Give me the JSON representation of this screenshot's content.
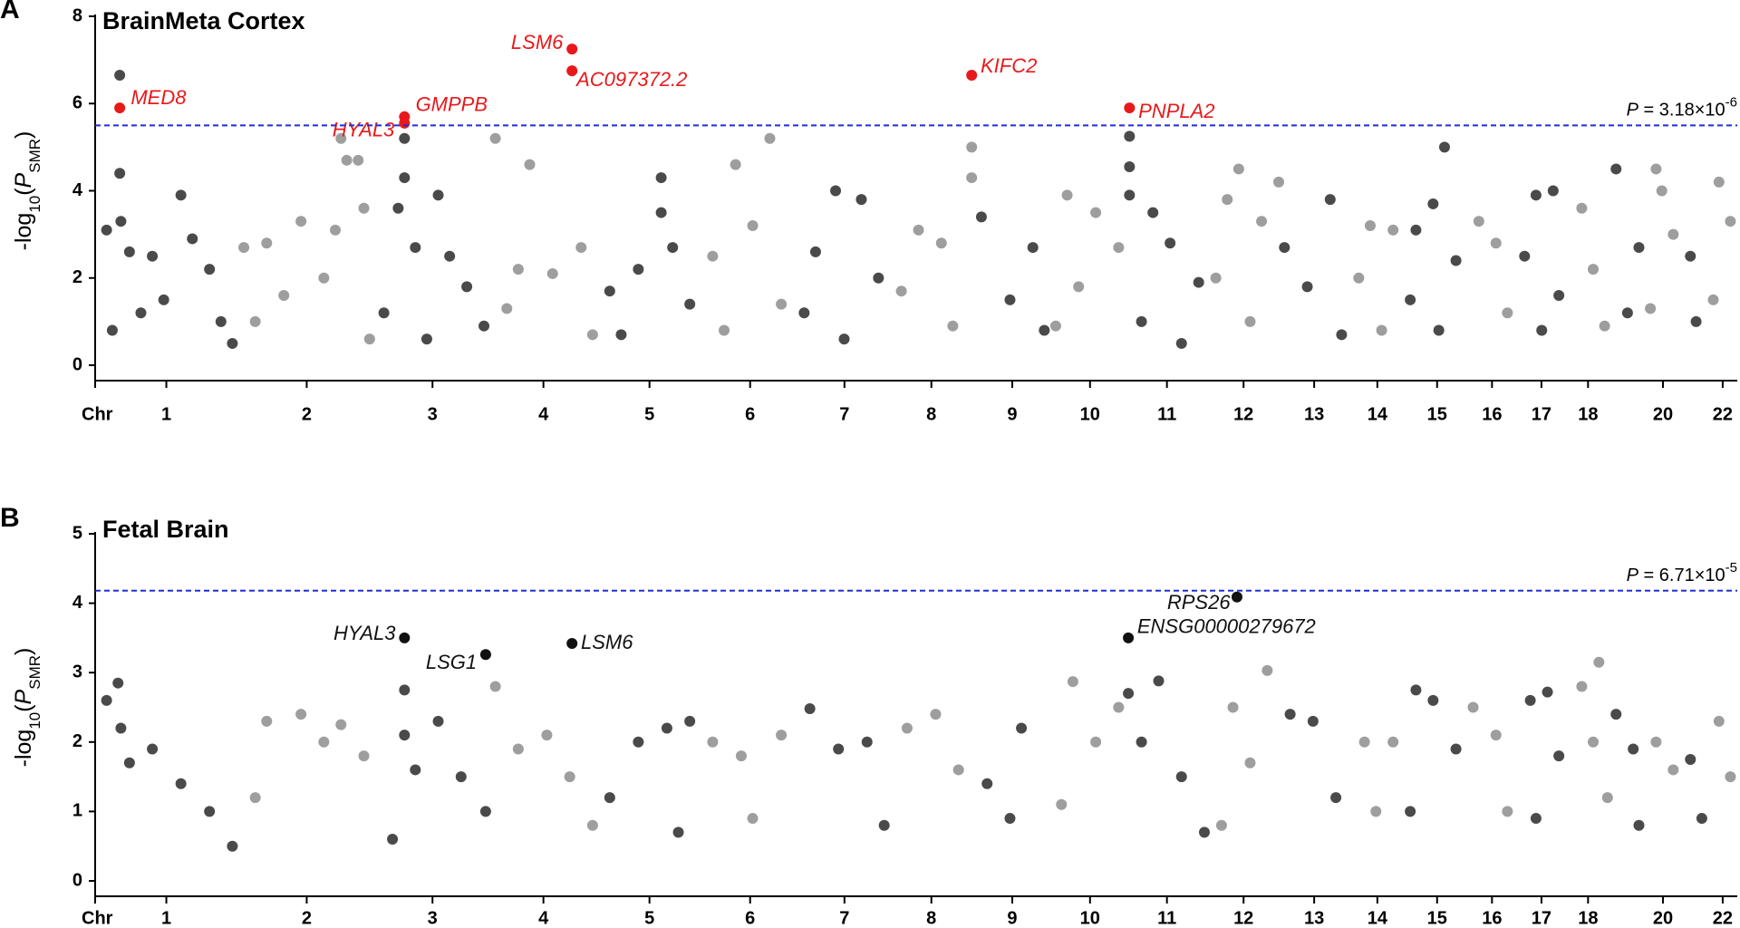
{
  "chart_data": [
    {
      "type": "scatter",
      "panel_label": "A",
      "title": "BrainMeta Cortex",
      "y_label": [
        "-log",
        "10",
        "(",
        "P",
        "SMR",
        ")"
      ],
      "xlim": [
        0,
        2872
      ],
      "ylim": [
        0,
        8
      ],
      "yticks": [
        0,
        2,
        4,
        6,
        8
      ],
      "xticks": [
        {
          "value": 0,
          "label": "Chr"
        },
        {
          "value": 124.5,
          "label": "1"
        },
        {
          "value": 370,
          "label": "2"
        },
        {
          "value": 590,
          "label": "3"
        },
        {
          "value": 784,
          "label": "4"
        },
        {
          "value": 969.5,
          "label": "5"
        },
        {
          "value": 1145.5,
          "label": "6"
        },
        {
          "value": 1310.5,
          "label": "7"
        },
        {
          "value": 1462.5,
          "label": "8"
        },
        {
          "value": 1604,
          "label": "9"
        },
        {
          "value": 1740,
          "label": "10"
        },
        {
          "value": 1874.5,
          "label": "11"
        },
        {
          "value": 2008.5,
          "label": "12"
        },
        {
          "value": 2132,
          "label": "13"
        },
        {
          "value": 2242.5,
          "label": "14"
        },
        {
          "value": 2347,
          "label": "15"
        },
        {
          "value": 2443,
          "label": "16"
        },
        {
          "value": 2529.5,
          "label": "17"
        },
        {
          "value": 2611,
          "label": "18"
        },
        {
          "value": 2742,
          "label": "20"
        },
        {
          "value": 2846.5,
          "label": "22"
        }
      ],
      "threshold": {
        "value": 5.5,
        "color": "#1f2fd6",
        "label": [
          "P",
          " = 3.18×10",
          "-6"
        ]
      },
      "series": [
        {
          "color": "#4a4a4a",
          "x": [
            43,
            43,
            20,
            45,
            60,
            100,
            150,
            170,
            200,
            120,
            80,
            30,
            220,
            240,
            541,
            541,
            530,
            560,
            600,
            620,
            650,
            505,
            680,
            580,
            990,
            990,
            1010,
            950,
            900,
            1040,
            920,
            1295,
            1340,
            1260,
            1370,
            1240,
            1310,
            1550,
            1640,
            1600,
            1660,
            1809,
            1809,
            1809,
            1850,
            1880,
            1930,
            1830,
            1900,
            2080,
            2160,
            2120,
            2180,
            2360,
            2340,
            2310,
            2380,
            2300,
            2350,
            2520,
            2550,
            2500,
            2560,
            2530,
            2660,
            2700,
            2680,
            2790,
            2800
          ],
          "values": [
            6.65,
            4.4,
            3.1,
            3.3,
            2.6,
            2.5,
            3.9,
            2.9,
            2.2,
            1.5,
            1.2,
            0.8,
            1.0,
            0.5,
            5.2,
            4.3,
            3.6,
            2.7,
            3.9,
            2.5,
            1.8,
            1.2,
            0.9,
            0.6,
            4.3,
            3.5,
            2.7,
            2.2,
            1.7,
            1.4,
            0.7,
            4.0,
            3.8,
            2.6,
            2.0,
            1.2,
            0.6,
            3.4,
            2.7,
            1.5,
            0.8,
            5.25,
            4.55,
            3.9,
            3.5,
            2.8,
            1.9,
            1.0,
            0.5,
            2.7,
            3.8,
            1.8,
            0.7,
            5.0,
            3.7,
            3.1,
            2.4,
            1.5,
            0.8,
            3.9,
            4.0,
            2.5,
            1.6,
            0.8,
            4.5,
            2.7,
            1.2,
            2.5,
            1.0
          ]
        },
        {
          "color": "#9e9e9e",
          "x": [
            260,
            300,
            360,
            420,
            430,
            440,
            460,
            470,
            400,
            330,
            280,
            480,
            700,
            760,
            740,
            800,
            850,
            720,
            870,
            1120,
            1180,
            1150,
            1080,
            1200,
            1100,
            1440,
            1480,
            1533,
            1533,
            1410,
            1500,
            1700,
            1750,
            1790,
            1720,
            1680,
            1980,
            2000,
            2040,
            2070,
            1960,
            2020,
            2230,
            2270,
            2210,
            2250,
            2420,
            2450,
            2470,
            2600,
            2620,
            2640,
            2730,
            2740,
            2760,
            2720,
            2840,
            2860,
            2830
          ],
          "values": [
            2.7,
            2.8,
            3.3,
            3.1,
            5.2,
            4.7,
            4.7,
            3.6,
            2.0,
            1.6,
            1.0,
            0.6,
            5.2,
            4.6,
            2.2,
            2.1,
            2.7,
            1.3,
            0.7,
            4.6,
            5.2,
            3.2,
            2.5,
            1.4,
            0.8,
            3.1,
            2.8,
            5.0,
            4.3,
            1.7,
            0.9,
            3.9,
            3.5,
            2.7,
            1.8,
            0.9,
            3.8,
            4.5,
            3.3,
            4.2,
            2.0,
            1.0,
            3.2,
            3.1,
            2.0,
            0.8,
            3.3,
            2.8,
            1.2,
            3.6,
            2.2,
            0.9,
            4.5,
            4.0,
            3.0,
            1.3,
            4.2,
            3.3,
            1.5
          ]
        },
        {
          "color": "#e8191a",
          "labels": [
            "MED8",
            "GMPPB",
            "HYAL3",
            "LSM6",
            "AC097372.2",
            "KIFC2",
            "PNPLA2"
          ],
          "x": [
            43,
            541,
            541,
            834,
            834,
            1533,
            1809
          ],
          "values": [
            5.9,
            5.7,
            5.55,
            7.25,
            6.75,
            6.65,
            5.9
          ]
        }
      ]
    },
    {
      "type": "scatter",
      "panel_label": "B",
      "title": "Fetal Brain",
      "y_label": [
        "-log",
        "10",
        "(",
        "P",
        "SMR",
        ")"
      ],
      "xlim": [
        0,
        2872
      ],
      "ylim": [
        0,
        5
      ],
      "yticks": [
        0,
        1,
        2,
        3,
        4,
        5
      ],
      "xticks": [
        {
          "value": 0,
          "label": "Chr"
        },
        {
          "value": 124.5,
          "label": "1"
        },
        {
          "value": 370,
          "label": "2"
        },
        {
          "value": 590,
          "label": "3"
        },
        {
          "value": 784,
          "label": "4"
        },
        {
          "value": 969.5,
          "label": "5"
        },
        {
          "value": 1145.5,
          "label": "6"
        },
        {
          "value": 1310.5,
          "label": "7"
        },
        {
          "value": 1462.5,
          "label": "8"
        },
        {
          "value": 1604,
          "label": "9"
        },
        {
          "value": 1740,
          "label": "10"
        },
        {
          "value": 1874.5,
          "label": "11"
        },
        {
          "value": 2008.5,
          "label": "12"
        },
        {
          "value": 2132,
          "label": "13"
        },
        {
          "value": 2242.5,
          "label": "14"
        },
        {
          "value": 2347,
          "label": "15"
        },
        {
          "value": 2443,
          "label": "16"
        },
        {
          "value": 2529.5,
          "label": "17"
        },
        {
          "value": 2611,
          "label": "18"
        },
        {
          "value": 2742,
          "label": "20"
        },
        {
          "value": 2846.5,
          "label": "22"
        }
      ],
      "threshold": {
        "value": 4.18,
        "color": "#1f2fd6",
        "label": [
          "P",
          " = 6.71×10",
          "-5"
        ]
      },
      "series": [
        {
          "color": "#4a4a4a",
          "x": [
            20,
            40,
            45,
            60,
            100,
            150,
            200,
            240,
            541,
            541,
            560,
            600,
            640,
            683,
            520,
            950,
            1000,
            1040,
            900,
            1020,
            1250,
            1300,
            1350,
            1380,
            1560,
            1620,
            1600,
            1807,
            1860,
            1830,
            1900,
            1940,
            2090,
            2130,
            2170,
            2310,
            2340,
            2380,
            2300,
            2510,
            2540,
            2560,
            2520,
            2660,
            2690,
            2700,
            2790,
            2810
          ],
          "values": [
            2.6,
            2.85,
            2.2,
            1.7,
            1.9,
            1.4,
            1.0,
            0.5,
            2.75,
            2.1,
            1.6,
            2.3,
            1.5,
            1.0,
            0.6,
            2.0,
            2.2,
            2.3,
            1.2,
            0.7,
            2.48,
            1.9,
            2.0,
            0.8,
            1.4,
            2.2,
            0.9,
            2.7,
            2.88,
            2.0,
            1.5,
            0.7,
            2.4,
            2.3,
            1.2,
            2.75,
            2.6,
            1.9,
            1.0,
            2.6,
            2.72,
            1.8,
            0.9,
            2.4,
            1.9,
            0.8,
            1.75,
            0.9
          ]
        },
        {
          "color": "#9e9e9e",
          "x": [
            300,
            360,
            400,
            430,
            470,
            280,
            700,
            740,
            790,
            830,
            870,
            1080,
            1130,
            1200,
            1150,
            1420,
            1470,
            1510,
            1710,
            1750,
            1790,
            1690,
            1990,
            2050,
            2020,
            1970,
            2220,
            2270,
            2240,
            2410,
            2450,
            2470,
            2600,
            2630,
            2620,
            2645,
            2730,
            2760,
            2840,
            2860
          ],
          "values": [
            2.3,
            2.4,
            2.0,
            2.25,
            1.8,
            1.2,
            2.8,
            1.9,
            2.1,
            1.5,
            0.8,
            2.0,
            1.8,
            2.1,
            0.9,
            2.2,
            2.4,
            1.6,
            2.87,
            2.0,
            2.5,
            1.1,
            2.5,
            3.03,
            1.7,
            0.8,
            2.0,
            2.0,
            1.0,
            2.5,
            2.1,
            1.0,
            2.8,
            3.15,
            2.0,
            1.2,
            2.0,
            1.6,
            2.3,
            1.5
          ]
        },
        {
          "color": "#111111",
          "labels": [
            "HYAL3",
            "LSG1",
            "LSM6",
            "ENSG00000279672",
            "RPS26"
          ],
          "x": [
            541,
            683,
            834,
            1807,
            1997
          ],
          "values": [
            3.5,
            3.26,
            3.42,
            3.5,
            4.09
          ]
        }
      ]
    }
  ]
}
